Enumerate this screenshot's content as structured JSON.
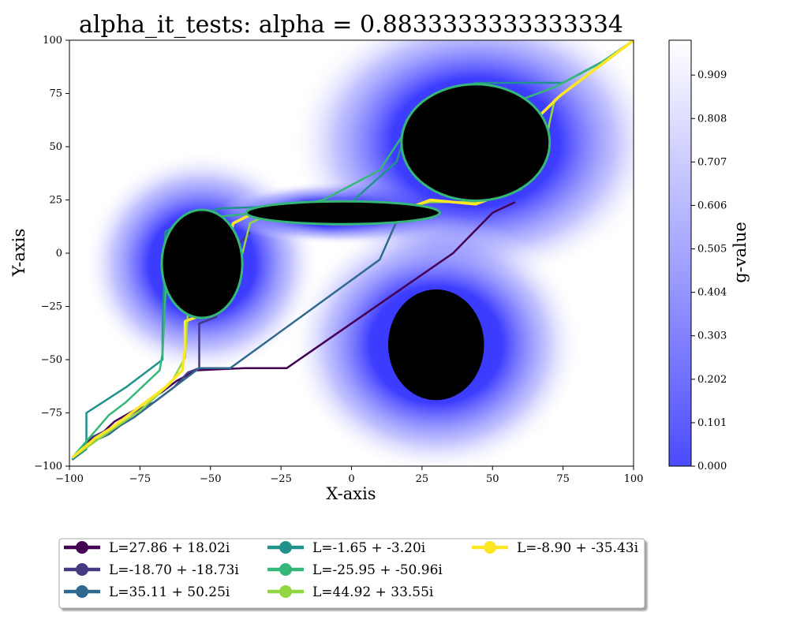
{
  "chart_data": {
    "type": "line",
    "title": "alpha_it_tests: alpha = 0.8833333333333334",
    "xlabel": "X-axis",
    "ylabel": "Y-axis",
    "xlim": [
      -100,
      100
    ],
    "ylim": [
      -100,
      100
    ],
    "xticks": [
      -100,
      -75,
      -50,
      -25,
      0,
      25,
      50,
      75,
      100
    ],
    "yticks": [
      -100,
      -75,
      -50,
      -25,
      0,
      25,
      50,
      75,
      100
    ],
    "grid": false,
    "legend_position": "below",
    "background_field": {
      "label": "g-value",
      "colormap": "blue-to-white",
      "colorbar_ticks": [
        "0.000",
        "0.101",
        "0.202",
        "0.303",
        "0.404",
        "0.505",
        "0.606",
        "0.707",
        "0.808",
        "0.909"
      ],
      "colorbar_range": [
        0,
        0.99
      ]
    },
    "obstacles": [
      {
        "cx": -53,
        "cy": -5,
        "rx": 14,
        "ry": 25,
        "halo": 28
      },
      {
        "cx": -3,
        "cy": 19,
        "rx": 34,
        "ry": 5,
        "halo": 10
      },
      {
        "cx": 44,
        "cy": 52,
        "rx": 26,
        "ry": 27,
        "halo": 40
      },
      {
        "cx": 30,
        "cy": -43,
        "rx": 17,
        "ry": 26,
        "halo": 35
      }
    ],
    "series": [
      {
        "name": "L=27.86 + 18.02i",
        "color": "#440154",
        "points": [
          [
            -99,
            -97
          ],
          [
            -93,
            -88
          ],
          [
            -88,
            -84
          ],
          [
            -84,
            -79
          ],
          [
            -80,
            -76
          ],
          [
            -76,
            -73
          ],
          [
            -72,
            -69
          ],
          [
            -67,
            -65
          ],
          [
            -62,
            -60
          ],
          [
            -55,
            -55
          ],
          [
            -38,
            -54
          ],
          [
            -23,
            -54
          ],
          [
            36,
            0
          ],
          [
            50,
            19
          ],
          [
            58,
            24
          ]
        ]
      },
      {
        "name": "L=-18.70 + -18.73i",
        "color": "#443983",
        "points": [
          [
            -99,
            -97
          ],
          [
            -93,
            -87
          ],
          [
            -85,
            -82
          ],
          [
            -80,
            -77
          ],
          [
            -75,
            -73
          ],
          [
            -70,
            -70
          ],
          [
            -63,
            -63
          ],
          [
            -58,
            -56
          ],
          [
            -54,
            -54
          ],
          [
            -54,
            -33
          ],
          [
            -48,
            -30
          ],
          [
            -45,
            -3
          ],
          [
            -36,
            10
          ]
        ]
      },
      {
        "name": "L=35.11 + 50.25i",
        "color": "#31688e",
        "points": [
          [
            -99,
            -97
          ],
          [
            -94,
            -90
          ],
          [
            -86,
            -85
          ],
          [
            -82,
            -81
          ],
          [
            -77,
            -77
          ],
          [
            -72,
            -72
          ],
          [
            -67,
            -67
          ],
          [
            -62,
            -62
          ],
          [
            -54,
            -54
          ],
          [
            -43,
            -54
          ],
          [
            10,
            -3
          ],
          [
            16,
            15
          ],
          [
            22,
            21
          ]
        ]
      },
      {
        "name": "L=-1.65 + -3.20i",
        "color": "#21918c",
        "points": [
          [
            -99,
            -97
          ],
          [
            -94,
            -92
          ],
          [
            -94,
            -75
          ],
          [
            -80,
            -63
          ],
          [
            -67,
            -50
          ],
          [
            -67,
            -39
          ],
          [
            -66,
            10
          ],
          [
            -60,
            15
          ],
          [
            -47,
            21
          ],
          [
            -26,
            22
          ],
          [
            -10,
            21
          ],
          [
            0,
            24
          ],
          [
            16,
            43
          ],
          [
            20,
            60
          ],
          [
            30,
            73
          ],
          [
            44,
            80
          ],
          [
            60,
            80
          ],
          [
            75,
            80
          ],
          [
            89,
            90
          ],
          [
            100,
            100
          ]
        ]
      },
      {
        "name": "L=-25.95 + -50.96i",
        "color": "#35b779",
        "points": [
          [
            -99,
            -96
          ],
          [
            -86,
            -76
          ],
          [
            -80,
            -70
          ],
          [
            -68,
            -55
          ],
          [
            -67,
            -47
          ],
          [
            -65,
            6
          ],
          [
            -58,
            16
          ],
          [
            -40,
            18
          ],
          [
            -25,
            21
          ],
          [
            -10,
            25
          ],
          [
            10,
            39
          ],
          [
            18,
            55
          ],
          [
            28,
            67
          ],
          [
            44,
            72
          ],
          [
            60,
            72
          ],
          [
            72,
            78
          ],
          [
            88,
            89
          ],
          [
            100,
            100
          ]
        ]
      },
      {
        "name": "L=44.92 + 33.55i",
        "color": "#90d743",
        "points": [
          [
            -99,
            -96
          ],
          [
            -85,
            -83
          ],
          [
            -75,
            -74
          ],
          [
            -64,
            -61
          ],
          [
            -59,
            -49
          ],
          [
            -58,
            -28
          ],
          [
            -48,
            -28
          ],
          [
            -40,
            -7
          ],
          [
            -36,
            14
          ],
          [
            -30,
            18
          ],
          [
            -15,
            22
          ],
          [
            5,
            23
          ],
          [
            20,
            22
          ],
          [
            28,
            24
          ],
          [
            45,
            24
          ],
          [
            60,
            30
          ],
          [
            68,
            45
          ],
          [
            70,
            60
          ],
          [
            72,
            72
          ],
          [
            85,
            85
          ],
          [
            100,
            100
          ]
        ]
      },
      {
        "name": "L=-8.90 + -35.43i",
        "color": "#fde725",
        "points": [
          [
            -99,
            -96
          ],
          [
            -91,
            -87
          ],
          [
            -85,
            -82
          ],
          [
            -79,
            -76
          ],
          [
            -73,
            -70
          ],
          [
            -66,
            -63
          ],
          [
            -60,
            -55
          ],
          [
            -59,
            -45
          ],
          [
            -59,
            -32
          ],
          [
            -55,
            -30
          ],
          [
            -49,
            -27
          ],
          [
            -45,
            -6
          ],
          [
            -42,
            14
          ],
          [
            -36,
            18
          ],
          [
            -20,
            19
          ],
          [
            0,
            18
          ],
          [
            20,
            21
          ],
          [
            28,
            25
          ],
          [
            44,
            23
          ],
          [
            56,
            29
          ],
          [
            65,
            42
          ],
          [
            68,
            58
          ],
          [
            67,
            65
          ],
          [
            74,
            74
          ],
          [
            84,
            84
          ],
          [
            100,
            100
          ]
        ]
      }
    ]
  }
}
